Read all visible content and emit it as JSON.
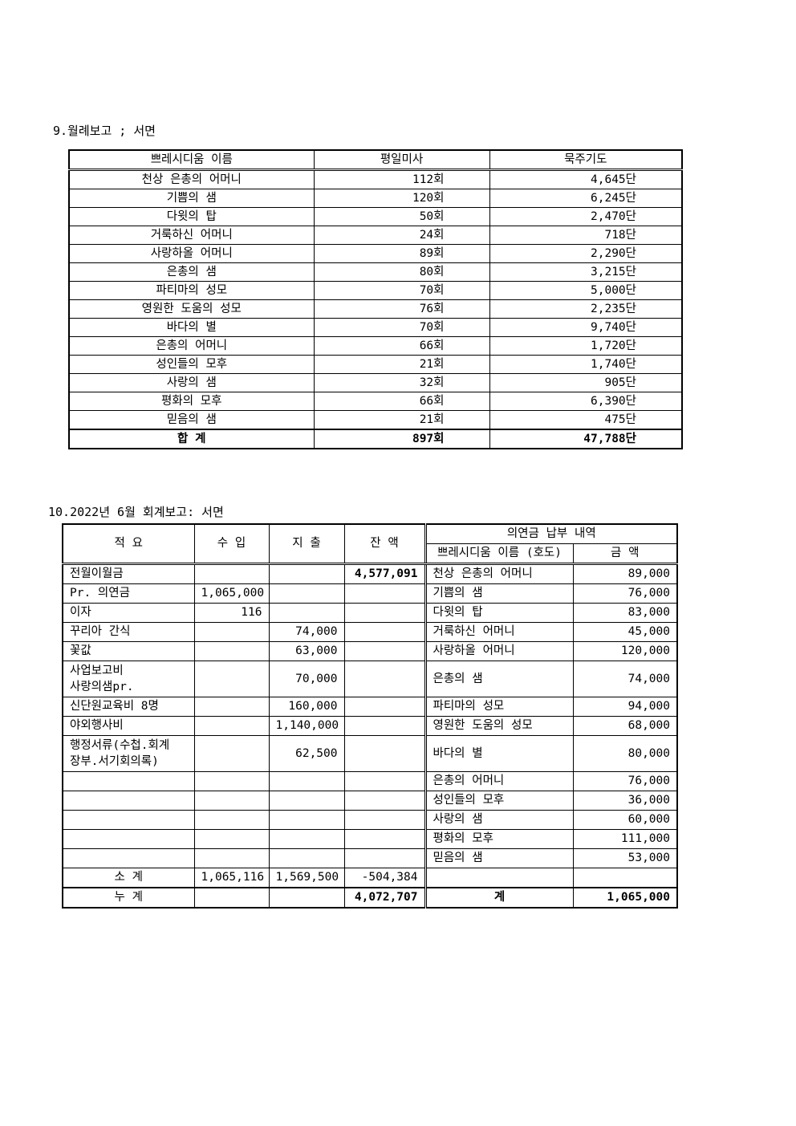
{
  "section9": {
    "title": "9.월례보고 ; 서면",
    "headers": [
      "쁘레시디움 이름",
      "평일미사",
      "묵주기도"
    ],
    "rows": [
      [
        "천상 은총의 어머니",
        "112회",
        "4,645단"
      ],
      [
        "기쁨의  샘",
        "120회",
        "6,245단"
      ],
      [
        "다윗의 탑",
        "50회",
        "2,470단"
      ],
      [
        "거룩하신 어머니",
        "24회",
        "718단"
      ],
      [
        "사랑하올 어머니",
        "89회",
        "2,290단"
      ],
      [
        "은총의  샘",
        "80회",
        "3,215단"
      ],
      [
        "파티마의 성모",
        "70회",
        "5,000단"
      ],
      [
        "영원한 도움의 성모",
        "76회",
        "2,235단"
      ],
      [
        "바다의 별",
        "70회",
        "9,740단"
      ],
      [
        "은총의 어머니",
        "66회",
        "1,720단"
      ],
      [
        "성인들의 모후",
        "21회",
        "1,740단"
      ],
      [
        "사랑의 샘",
        "32회",
        "905단"
      ],
      [
        "평화의 모후",
        "66회",
        "6,390단"
      ],
      [
        "믿음의 샘",
        "21회",
        "475단"
      ]
    ],
    "total": [
      "합    계",
      "897회",
      "47,788단"
    ]
  },
  "section10": {
    "title": "10.2022년 6월 회계보고: 서면",
    "headers": [
      "적  요",
      "수  입",
      "지  출",
      "잔  액"
    ],
    "donation_header": "의연금 납부 내역",
    "donation_subheaders": [
      "쁘레시디움 이름 (호도)",
      "금  액"
    ],
    "rows": [
      [
        "전월이월금",
        "",
        "",
        "4,577,091",
        "천상 은총의 어머니",
        "89,000"
      ],
      [
        "Pr. 의연금",
        "1,065,000",
        "",
        "",
        "기쁨의 샘",
        "76,000"
      ],
      [
        "이자",
        "116",
        "",
        "",
        "다윗의  탑",
        "83,000"
      ],
      [
        "꾸리아 간식",
        "",
        "74,000",
        "",
        "거룩하신 어머니",
        "45,000"
      ],
      [
        "꽃값",
        "",
        "63,000",
        "",
        "사랑하올 어머니",
        "120,000"
      ],
      [
        "사업보고비\n사랑의샘pr.",
        "",
        "70,000",
        "",
        "은총의 샘",
        "74,000"
      ],
      [
        "신단원교육비 8명",
        "",
        "160,000",
        "",
        "파티마의 성모",
        "94,000"
      ],
      [
        "야외행사비",
        "",
        "1,140,000",
        "",
        "영원한 도움의 성모",
        "68,000"
      ],
      [
        "행정서류(수첩.회계\n장부.서기회의록)",
        "",
        "62,500",
        "",
        "바다의 별",
        "80,000"
      ],
      [
        "",
        "",
        "",
        "",
        "은총의 어머니",
        "76,000"
      ],
      [
        "",
        "",
        "",
        "",
        "성인들의 모후",
        "36,000"
      ],
      [
        "",
        "",
        "",
        "",
        "사랑의 샘",
        "60,000"
      ],
      [
        "",
        "",
        "",
        "",
        "평화의 모후",
        "111,000"
      ],
      [
        "",
        "",
        "",
        "",
        "믿음의 샘",
        "53,000"
      ]
    ],
    "subtotal": [
      "소 계",
      "1,065,116",
      "1,569,500",
      "-504,384",
      "",
      ""
    ],
    "cumulative": [
      "누 계",
      "",
      "",
      "4,072,707",
      "계",
      "1,065,000"
    ]
  }
}
